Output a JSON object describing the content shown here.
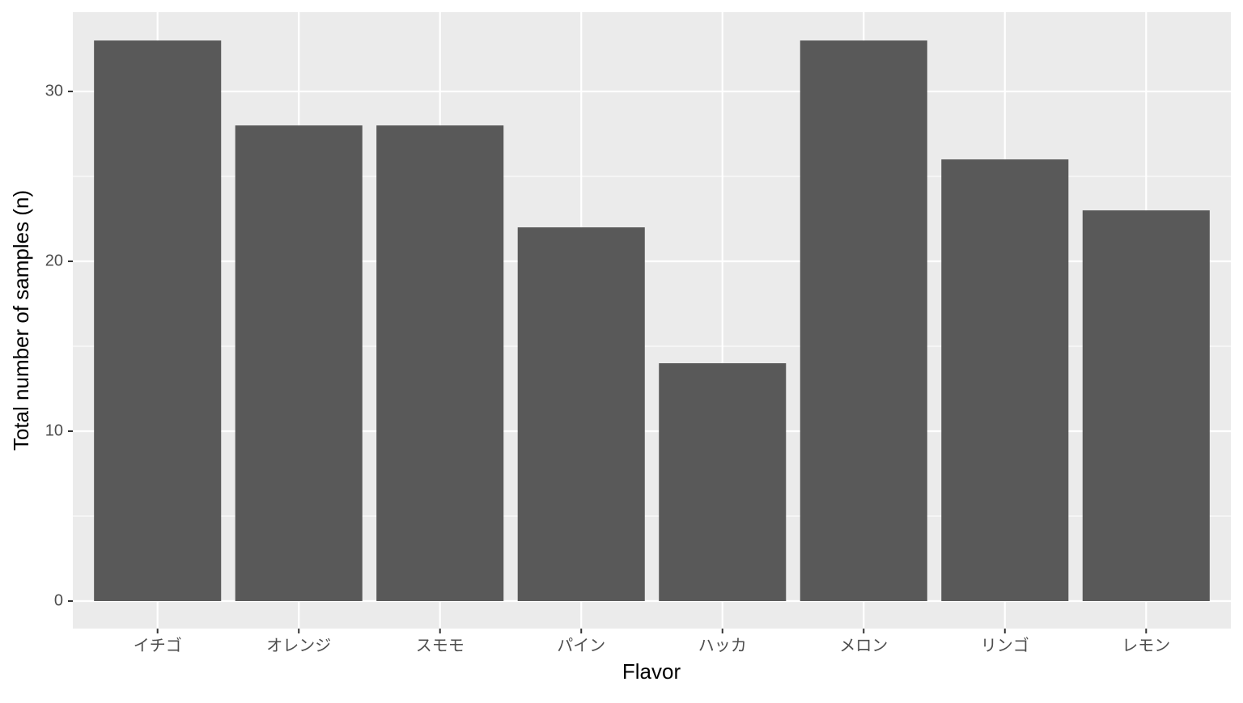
{
  "chart_data": {
    "type": "bar",
    "x_label": "Flavor",
    "y_label": "Total number of samples (n)",
    "categories": [
      "イチゴ",
      "オレンジ",
      "スモモ",
      "パイン",
      "ハッカ",
      "メロン",
      "リンゴ",
      "レモン"
    ],
    "values": [
      33,
      28,
      28,
      22,
      14,
      33,
      26,
      23
    ],
    "color": "#595959",
    "ylim": [
      -1.62,
      34.67
    ],
    "yticks": [
      0,
      10,
      20,
      30
    ],
    "grid": true
  }
}
